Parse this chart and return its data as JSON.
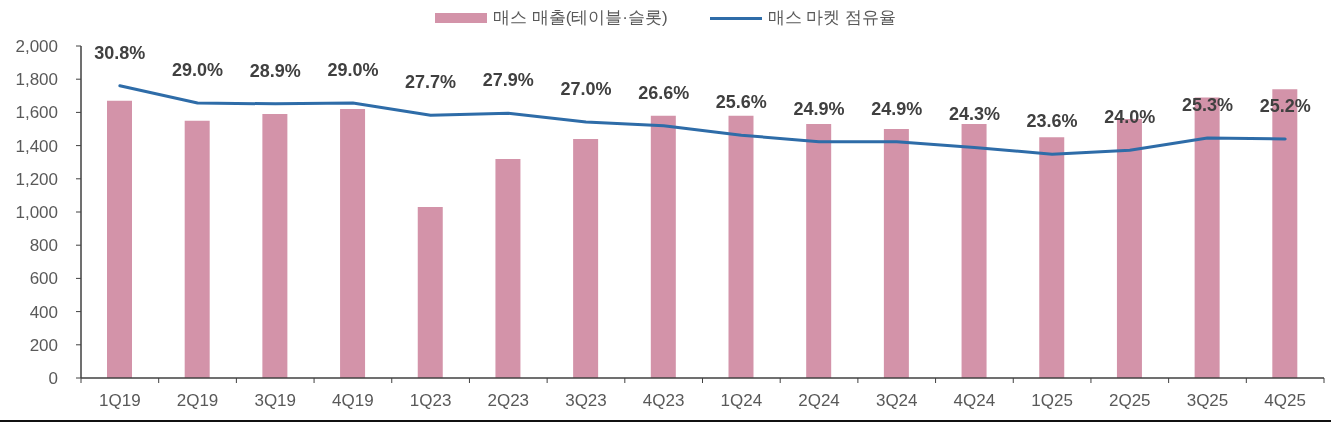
{
  "chart_data": {
    "type": "bar",
    "categories": [
      "1Q19",
      "2Q19",
      "3Q19",
      "4Q19",
      "1Q23",
      "2Q23",
      "3Q23",
      "4Q23",
      "1Q24",
      "2Q24",
      "3Q24",
      "4Q24",
      "1Q25",
      "2Q25",
      "3Q25",
      "4Q25"
    ],
    "series": [
      {
        "name": "매스 매출(테이블·슬롯)",
        "color": "#d393a9",
        "values": [
          1670,
          1550,
          1590,
          1620,
          1030,
          1320,
          1440,
          1580,
          1580,
          1530,
          1500,
          1530,
          1450,
          1560,
          1690,
          1740
        ]
      },
      {
        "name": "매스 마켓 점유율",
        "type": "line",
        "axis": "y2",
        "color": "#2e6ca8",
        "values": [
          30.8,
          29.0,
          28.9,
          29.0,
          27.7,
          27.9,
          27.0,
          26.6,
          25.6,
          24.9,
          24.9,
          24.3,
          23.6,
          24.0,
          25.3,
          25.2
        ],
        "value_labels": [
          "30.8%",
          "29.0%",
          "28.9%",
          "29.0%",
          "27.7%",
          "27.9%",
          "27.0%",
          "26.6%",
          "25.6%",
          "24.9%",
          "24.9%",
          "24.3%",
          "23.6%",
          "24.0%",
          "25.3%",
          "25.2%"
        ]
      }
    ],
    "ylim": [
      0,
      2000
    ],
    "yticks": [
      0,
      200,
      400,
      600,
      800,
      {
        "value": 1000,
        "label": "1,000"
      },
      {
        "value": 1200,
        "label": "1,200"
      },
      {
        "value": 1400,
        "label": "1,400"
      },
      {
        "value": 1600,
        "label": "1,600"
      },
      {
        "value": 1800,
        "label": "1,800"
      },
      {
        "value": 2000,
        "label": "2,000"
      }
    ],
    "y2lim": [
      0,
      35
    ],
    "legend": "top"
  }
}
